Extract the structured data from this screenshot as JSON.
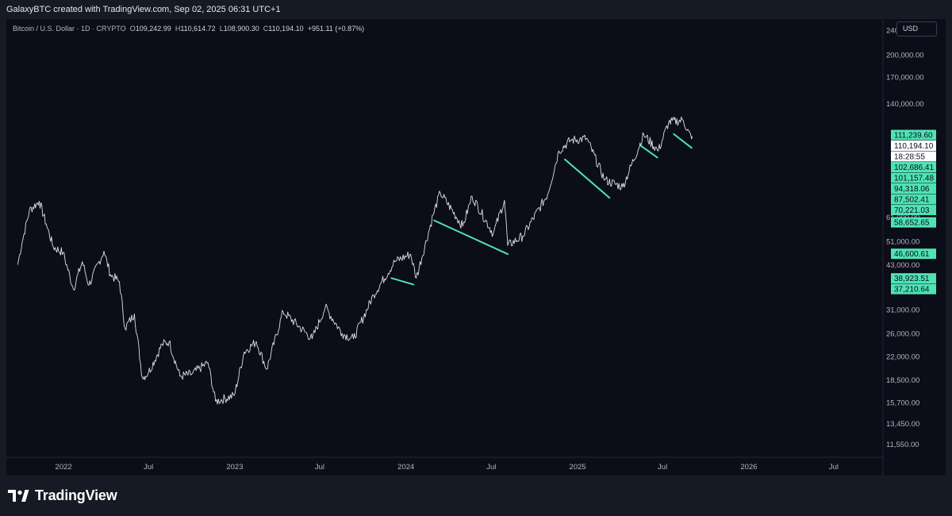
{
  "header": {
    "credit": "GalaxyBTC created with TradingView.com, Sep 02, 2025 06:31 UTC+1"
  },
  "legend": {
    "symbol": "Bitcoin / U.S. Dollar · 1D · CRYPTO",
    "o_label": "O",
    "o": "109,242.99",
    "h_label": "H",
    "h": "110,614.72",
    "l_label": "L",
    "l": "108,900.30",
    "c_label": "C",
    "c": "110,194.10",
    "change": "+951.11 (+0.87%)"
  },
  "currency": "USD",
  "brand": {
    "name": "TradingView"
  },
  "colors": {
    "background": "#0b0d19",
    "price_line": "#e0e0e0",
    "accent": "#4fe3b4",
    "current_price_bg": "#ffffff"
  },
  "chart_data": {
    "type": "line",
    "scale": "log",
    "ylim": [
      10500,
      260000
    ],
    "x_tick_labels": [
      "2022",
      "Jul",
      "2023",
      "Jul",
      "2024",
      "Jul",
      "2025",
      "Jul",
      "2026",
      "Jul"
    ],
    "x_tick_dates": [
      "2022-01-01",
      "2022-07-01",
      "2023-01-01",
      "2023-07-01",
      "2024-01-01",
      "2024-07-01",
      "2025-01-01",
      "2025-07-01",
      "2026-01-01",
      "2026-07-01"
    ],
    "y_ticks": [
      {
        "label": "240,000.00",
        "value": 240000
      },
      {
        "label": "200,000.00",
        "value": 200000
      },
      {
        "label": "170,000.00",
        "value": 170000
      },
      {
        "label": "140,000.00",
        "value": 140000
      },
      {
        "label": "61,000.00",
        "value": 61000
      },
      {
        "label": "51,000.00",
        "value": 51000
      },
      {
        "label": "43,000.00",
        "value": 43000
      },
      {
        "label": "31,000.00",
        "value": 31000
      },
      {
        "label": "26,000.00",
        "value": 26000
      },
      {
        "label": "22,000.00",
        "value": 22000
      },
      {
        "label": "18,500.00",
        "value": 18500
      },
      {
        "label": "15,700.00",
        "value": 15700
      },
      {
        "label": "13,450.00",
        "value": 13450
      },
      {
        "label": "11,550.00",
        "value": 11550
      }
    ],
    "price_badges": [
      {
        "label": "111,239.60",
        "value": 111239.6,
        "kind": "accent"
      },
      {
        "label": "110,194.10",
        "value": 110194.1,
        "kind": "current"
      },
      {
        "label": "18:28:55",
        "kind": "countdown"
      },
      {
        "label": "102,686.41",
        "value": 102686.41,
        "kind": "accent"
      },
      {
        "label": "101,157.48",
        "value": 101157.48,
        "kind": "accent"
      },
      {
        "label": "94,318.06",
        "value": 94318.06,
        "kind": "accent"
      },
      {
        "label": "87,502.41",
        "value": 87502.41,
        "kind": "accent"
      },
      {
        "label": "70,221.03",
        "value": 70221.03,
        "kind": "accent"
      },
      {
        "label": "58,652.65",
        "value": 58652.65,
        "kind": "accent"
      },
      {
        "label": "46,600.61",
        "value": 46600.61,
        "kind": "accent"
      },
      {
        "label": "38,923.51",
        "value": 38923.51,
        "kind": "accent"
      },
      {
        "label": "37,210.64",
        "value": 37210.64,
        "kind": "accent"
      }
    ],
    "series": [
      {
        "price_points": [
          [
            "2021-09-25",
            43000
          ],
          [
            "2021-10-05",
            51000
          ],
          [
            "2021-10-20",
            64000
          ],
          [
            "2021-11-10",
            68500
          ],
          [
            "2021-11-25",
            58000
          ],
          [
            "2021-12-10",
            49000
          ],
          [
            "2021-12-31",
            47000
          ],
          [
            "2022-01-22",
            36000
          ],
          [
            "2022-02-10",
            44000
          ],
          [
            "2022-02-24",
            37000
          ],
          [
            "2022-03-28",
            47500
          ],
          [
            "2022-04-11",
            40000
          ],
          [
            "2022-04-30",
            38000
          ],
          [
            "2022-05-12",
            27000
          ],
          [
            "2022-06-01",
            30000
          ],
          [
            "2022-06-18",
            18800
          ],
          [
            "2022-07-01",
            19500
          ],
          [
            "2022-07-30",
            24000
          ],
          [
            "2022-08-14",
            24500
          ],
          [
            "2022-09-06",
            19000
          ],
          [
            "2022-10-01",
            19300
          ],
          [
            "2022-11-05",
            21000
          ],
          [
            "2022-11-21",
            15800
          ],
          [
            "2022-12-31",
            16500
          ],
          [
            "2023-01-21",
            22700
          ],
          [
            "2023-02-16",
            24500
          ],
          [
            "2023-03-10",
            20000
          ],
          [
            "2023-04-14",
            30500
          ],
          [
            "2023-06-15",
            25000
          ],
          [
            "2023-07-13",
            31500
          ],
          [
            "2023-08-18",
            26000
          ],
          [
            "2023-09-11",
            25000
          ],
          [
            "2023-10-24",
            34500
          ],
          [
            "2023-12-08",
            44000
          ],
          [
            "2024-01-11",
            46500
          ],
          [
            "2024-01-23",
            39000
          ],
          [
            "2024-02-28",
            62000
          ],
          [
            "2024-03-14",
            73000
          ],
          [
            "2024-05-01",
            57000
          ],
          [
            "2024-05-21",
            71000
          ],
          [
            "2024-07-05",
            54000
          ],
          [
            "2024-07-29",
            69000
          ],
          [
            "2024-08-05",
            49500
          ],
          [
            "2024-09-06",
            53000
          ],
          [
            "2024-10-29",
            72000
          ],
          [
            "2024-11-22",
            99000
          ],
          [
            "2024-12-17",
            107000
          ],
          [
            "2025-01-20",
            108500
          ],
          [
            "2025-02-28",
            80000
          ],
          [
            "2025-04-07",
            76000
          ],
          [
            "2025-05-22",
            111500
          ],
          [
            "2025-06-22",
            99000
          ],
          [
            "2025-07-14",
            122000
          ],
          [
            "2025-08-14",
            124000
          ],
          [
            "2025-09-01",
            108000
          ],
          [
            "2025-09-02",
            110194
          ]
        ]
      }
    ],
    "trend_segments": [
      [
        [
          "2023-12-01",
          39000
        ],
        [
          "2024-01-17",
          37200
        ]
      ],
      [
        [
          "2024-03-01",
          59500
        ],
        [
          "2024-08-05",
          46500
        ]
      ],
      [
        [
          "2024-12-05",
          93000
        ],
        [
          "2025-03-10",
          70200
        ]
      ],
      [
        [
          "2025-05-15",
          103000
        ],
        [
          "2025-06-20",
          94300
        ]
      ],
      [
        [
          "2025-07-25",
          112000
        ],
        [
          "2025-09-01",
          101200
        ]
      ]
    ]
  }
}
